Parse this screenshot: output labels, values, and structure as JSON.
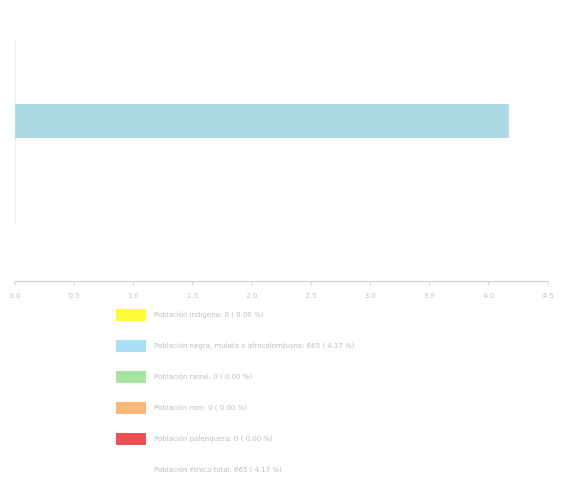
{
  "chart_data": {
    "type": "bar",
    "orientation": "horizontal",
    "title": "",
    "xlabel": "",
    "ylabel": "",
    "xlim": [
      0,
      4.5
    ],
    "xticks": [
      "0.0",
      "0.5",
      "1.0",
      "1.5",
      "2.0",
      "2.5",
      "3.0",
      "3.5",
      "4.0",
      "4.5"
    ],
    "series": [
      {
        "value": 4.17,
        "color": "#add8e6"
      }
    ],
    "grid": false,
    "legend_placement": "bottom"
  },
  "legend": {
    "items": [
      {
        "label": "Población indígena: 0 ( 0.00 %)",
        "color": "#fffb3b"
      },
      {
        "label": "Población negra, mulata o afrocolombiana: 665 ( 4.17 %)",
        "color": "#a8dff5"
      },
      {
        "label": "Población raizal: 0 ( 0.00 %)",
        "color": "#a6e2a0"
      },
      {
        "label": "Población rom: 0 ( 0.00 %)",
        "color": "#f7b77a"
      },
      {
        "label": "Población palenquera: 0 ( 0.00 %)",
        "color": "#ee4d52"
      }
    ],
    "total_label": "Población étnica total: 665 ( 4.17 %)"
  }
}
